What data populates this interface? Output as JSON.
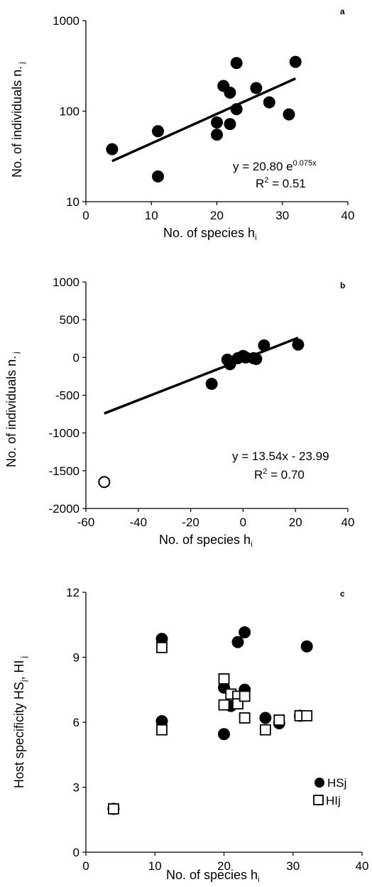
{
  "chart_data": [
    {
      "panel": "a",
      "type": "scatter",
      "yscale": "log",
      "xlim": [
        0,
        40
      ],
      "ylim": [
        10,
        1000
      ],
      "xticks": [
        "0",
        "10",
        "20",
        "30",
        "40"
      ],
      "yticks": [
        "10",
        "100",
        "1000"
      ],
      "xlabel": "No. of species h",
      "xlabel_sub": "i",
      "ylabel": "No. of individuals n.",
      "ylabel_sub": "j",
      "equation_base": "y = 20.80 e",
      "equation_exp": "0.075x",
      "r2_prefix": "R",
      "r2_sup": "2",
      "r2_suffix": " = 0.51",
      "points": [
        [
          4,
          38
        ],
        [
          11,
          60
        ],
        [
          11,
          19
        ],
        [
          20,
          75
        ],
        [
          20,
          55
        ],
        [
          21,
          190
        ],
        [
          22,
          160
        ],
        [
          22,
          72
        ],
        [
          23,
          340
        ],
        [
          23,
          105
        ],
        [
          26,
          180
        ],
        [
          28,
          125
        ],
        [
          31,
          92
        ],
        [
          32,
          350
        ]
      ],
      "trendline": {
        "type": "exponential",
        "a": 20.8,
        "b": 0.075,
        "x_range": [
          4,
          32
        ]
      }
    },
    {
      "panel": "b",
      "type": "scatter",
      "xlim": [
        -60,
        40
      ],
      "ylim": [
        -2000,
        1000
      ],
      "xticks": [
        "-60",
        "-40",
        "-20",
        "0",
        "20",
        "40"
      ],
      "yticks": [
        "-2000",
        "-1500",
        "-1000",
        "-500",
        "0",
        "500",
        "1000"
      ],
      "xlabel": "No. of species h",
      "xlabel_sub": "i",
      "ylabel": "No. of individuals n.",
      "ylabel_sub": "j",
      "equation_line1": "y = 13.54x - 23.99",
      "r2_prefix": "R",
      "r2_sup": "2",
      "r2_suffix": " = 0.70",
      "filled_points": [
        [
          -12,
          -350
        ],
        [
          -6,
          -30
        ],
        [
          -5,
          -90
        ],
        [
          -2,
          -10
        ],
        [
          0,
          20
        ],
        [
          1,
          0
        ],
        [
          4,
          -10
        ],
        [
          5,
          -20
        ],
        [
          8,
          160
        ],
        [
          21,
          170
        ]
      ],
      "open_points": [
        [
          -53,
          -1650
        ]
      ],
      "trendline": {
        "type": "linear",
        "slope": 13.54,
        "intercept": -23.99,
        "x_range": [
          -53,
          21
        ]
      }
    },
    {
      "panel": "c",
      "type": "scatter",
      "xlim": [
        0,
        40
      ],
      "ylim": [
        0,
        12
      ],
      "xticks": [
        "0",
        "10",
        "20",
        "30",
        "40"
      ],
      "yticks": [
        "0",
        "3",
        "6",
        "9",
        "12"
      ],
      "xlabel": "No. of species h",
      "xlabel_sub": "i",
      "ylabel_parts": [
        "Host specificity HS",
        "j",
        ", HI",
        "j"
      ],
      "series": [
        {
          "name": "HSj",
          "marker": "filled-circle",
          "points": [
            [
              4,
              2.0
            ],
            [
              11,
              9.85
            ],
            [
              11,
              6.05
            ],
            [
              20,
              5.45
            ],
            [
              20,
              7.6
            ],
            [
              21,
              6.75
            ],
            [
              22,
              9.7
            ],
            [
              23,
              10.15
            ],
            [
              23,
              7.5
            ],
            [
              26,
              6.2
            ],
            [
              28,
              5.95
            ],
            [
              31,
              6.3
            ],
            [
              32,
              9.5
            ]
          ]
        },
        {
          "name": "HIj",
          "marker": "open-square",
          "points": [
            [
              4,
              2.0
            ],
            [
              11,
              9.45
            ],
            [
              11,
              5.65
            ],
            [
              20,
              8.0
            ],
            [
              20,
              6.8
            ],
            [
              21,
              7.3
            ],
            [
              22,
              7.2
            ],
            [
              22,
              6.85
            ],
            [
              23,
              7.2
            ],
            [
              23,
              6.2
            ],
            [
              26,
              5.65
            ],
            [
              28,
              6.1
            ],
            [
              31,
              6.3
            ],
            [
              32,
              6.3
            ]
          ]
        }
      ]
    }
  ]
}
